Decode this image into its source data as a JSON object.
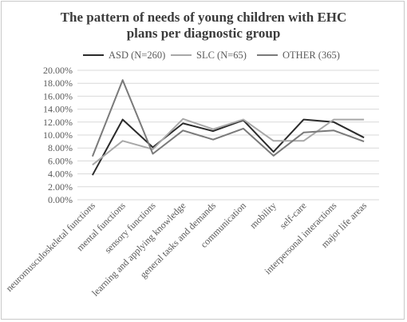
{
  "chart_data": {
    "type": "line",
    "title_lines": [
      "The pattern of needs of young children with EHC",
      "plans per diagnostic group"
    ],
    "xlabel": "",
    "ylabel": "",
    "ylim": [
      0,
      20
    ],
    "y_tick_labels": [
      "0.00%",
      "2.00%",
      "4.00%",
      "6.00%",
      "8.00%",
      "10.00%",
      "12.00%",
      "14.00%",
      "16.00%",
      "18.00%",
      "20.00%"
    ],
    "grid": true,
    "legend_position": "top",
    "categories": [
      "neuromusculoskeletal functions",
      "mental functions",
      "sensory functions",
      "learning and applying knowledge",
      "general tasks and demands",
      "communication",
      "mobility",
      "self-care",
      "interpersonal interactions",
      "major life areas"
    ],
    "series": [
      {
        "name": "ASD (N=260)",
        "color": "#2b2b2b",
        "values": [
          3.8,
          12.4,
          8.1,
          11.8,
          10.6,
          12.3,
          7.4,
          12.4,
          12.0,
          9.6
        ]
      },
      {
        "name": "SLC (N=65)",
        "color": "#a8a8a8",
        "values": [
          5.4,
          9.1,
          7.8,
          12.5,
          10.9,
          12.4,
          9.1,
          9.1,
          12.4,
          12.4
        ]
      },
      {
        "name": "OTHER (365)",
        "color": "#7a7a7a",
        "values": [
          6.7,
          18.5,
          7.1,
          10.7,
          9.3,
          11.0,
          6.8,
          10.4,
          10.7,
          9.0
        ]
      }
    ]
  }
}
